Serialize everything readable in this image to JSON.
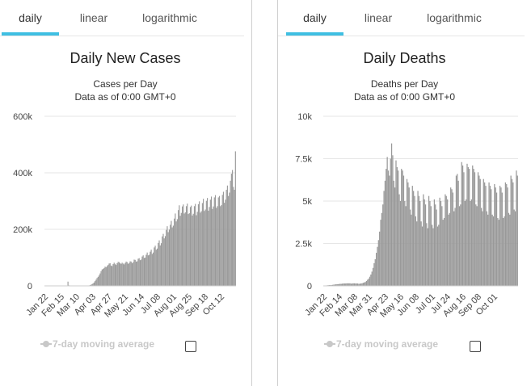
{
  "left_panel": {
    "tabs": [
      {
        "label": "daily",
        "active": true
      },
      {
        "label": "linear",
        "active": false
      },
      {
        "label": "logarithmic",
        "active": false
      }
    ],
    "title": "Daily New Cases",
    "subtitle": "Cases per Day",
    "data_note": "Data as of 0:00 GMT+0",
    "legend_label": "7-day moving average"
  },
  "right_panel": {
    "tabs": [
      {
        "label": "daily",
        "active": true
      },
      {
        "label": "linear",
        "active": false
      },
      {
        "label": "logarithmic",
        "active": false
      }
    ],
    "title": "Daily Deaths",
    "subtitle": "Deaths per Day",
    "data_note": "Data as of 0:00 GMT+0",
    "legend_label": "7-day moving average"
  },
  "colors": {
    "bar": "#999999",
    "grid": "#e6e6e6",
    "tab_underline": "#3fbfe2",
    "legend_disabled": "#c8c8c8"
  },
  "chart_data": [
    {
      "type": "bar",
      "title": "Daily New Cases",
      "subtitle": "Cases per Day",
      "ylim": [
        0,
        600000
      ],
      "yticks": [
        0,
        200000,
        400000,
        600000
      ],
      "ytick_labels": [
        "0",
        "200k",
        "400k",
        "600k"
      ],
      "x_range": [
        "Jan 22",
        "Oct 21"
      ],
      "xtick_labels": [
        "Jan 22",
        "Feb 15",
        "Mar 10",
        "Apr 03",
        "Apr 27",
        "May 21",
        "Jun 14",
        "Jul 08",
        "Aug 01",
        "Aug 25",
        "Sep 18",
        "Oct 12"
      ],
      "grid": true,
      "series": [
        {
          "values": [
            0,
            0,
            0,
            0,
            0,
            0,
            0,
            0,
            0,
            0,
            0,
            0,
            0,
            0,
            0,
            0,
            0,
            0,
            0,
            0,
            0,
            0,
            0,
            15000,
            2000,
            500,
            0,
            0,
            0,
            0,
            0,
            0,
            0,
            0,
            0,
            0,
            0,
            0,
            0,
            0,
            0,
            0,
            500,
            1000,
            1500,
            2500,
            4000,
            6000,
            9000,
            12000,
            17000,
            22000,
            28000,
            32000,
            37000,
            44000,
            52000,
            58000,
            60000,
            63000,
            68000,
            66000,
            70000,
            74000,
            79000,
            80000,
            72000,
            70000,
            77000,
            82000,
            78000,
            74000,
            80000,
            85000,
            84000,
            80000,
            78000,
            82000,
            79000,
            76000,
            81000,
            86000,
            84000,
            78000,
            81000,
            87000,
            86000,
            80000,
            84000,
            93000,
            92000,
            86000,
            87000,
            96000,
            98000,
            91000,
            93000,
            104000,
            108000,
            99000,
            100000,
            110000,
            118000,
            108000,
            110000,
            121000,
            128000,
            113000,
            118000,
            136000,
            142000,
            128000,
            132000,
            152000,
            161000,
            143000,
            151000,
            175000,
            184000,
            168000,
            176000,
            198000,
            211000,
            190000,
            199000,
            216000,
            230000,
            207000,
            213000,
            238000,
            256000,
            228000,
            236000,
            268000,
            285000,
            248000,
            258000,
            281000,
            288000,
            256000,
            260000,
            282000,
            291000,
            254000,
            257000,
            279000,
            284000,
            249000,
            255000,
            282000,
            290000,
            250000,
            262000,
            289000,
            299000,
            259000,
            264000,
            293000,
            308000,
            265000,
            270000,
            301000,
            311000,
            266000,
            279000,
            305000,
            316000,
            272000,
            281000,
            313000,
            321000,
            276000,
            282000,
            313000,
            318000,
            282000,
            286000,
            322000,
            333000,
            294000,
            305000,
            340000,
            355000,
            318000,
            330000,
            372000,
            397000,
            410000,
            350000,
            340000,
            476000
          ]
        }
      ]
    },
    {
      "type": "bar",
      "title": "Daily Deaths",
      "subtitle": "Deaths per Day",
      "ylim": [
        0,
        10000
      ],
      "yticks": [
        0,
        2500,
        5000,
        7500,
        10000
      ],
      "ytick_labels": [
        "0",
        "2.5k",
        "5k",
        "7.5k",
        "10k"
      ],
      "x_range": [
        "Jan 22",
        "Oct 20"
      ],
      "xtick_labels": [
        "Jan 22",
        "Feb 14",
        "Mar 08",
        "Mar 31",
        "Apr 23",
        "May 16",
        "Jun 08",
        "Jul 01",
        "Jul 24",
        "Aug 16",
        "Sep 08",
        "Oct 01"
      ],
      "grid": true,
      "series": [
        {
          "values": [
            20,
            20,
            25,
            30,
            40,
            45,
            45,
            50,
            60,
            70,
            80,
            90,
            100,
            100,
            110,
            120,
            120,
            130,
            140,
            140,
            140,
            150,
            150,
            150,
            150,
            130,
            140,
            150,
            150,
            140,
            140,
            140,
            120,
            130,
            140,
            150,
            180,
            200,
            230,
            290,
            360,
            430,
            540,
            670,
            840,
            1060,
            1340,
            1570,
            1950,
            2300,
            2700,
            3200,
            3900,
            4300,
            4800,
            5600,
            6200,
            6900,
            7600,
            6800,
            6500,
            7500,
            8400,
            7700,
            6200,
            5800,
            7400,
            7000,
            6800,
            5400,
            5000,
            6900,
            6800,
            6500,
            5000,
            4700,
            6300,
            6100,
            5800,
            4500,
            4200,
            5900,
            5600,
            5300,
            4100,
            3800,
            5600,
            5300,
            5000,
            3800,
            3500,
            5400,
            5100,
            4800,
            3700,
            3400,
            5300,
            5000,
            4700,
            3600,
            3400,
            5100,
            4800,
            4500,
            3500,
            3600,
            5200,
            5000,
            4700,
            3900,
            4000,
            5400,
            5300,
            5100,
            4200,
            4300,
            5800,
            5700,
            5500,
            4400,
            4600,
            6500,
            6600,
            6200,
            4700,
            4800,
            7300,
            7100,
            6700,
            5000,
            5100,
            7200,
            7000,
            6900,
            5000,
            5100,
            7100,
            6900,
            6700,
            4800,
            4700,
            6700,
            6500,
            6300,
            4600,
            4400,
            6300,
            6100,
            5900,
            4400,
            4200,
            6100,
            5900,
            5700,
            4200,
            4100,
            6000,
            5800,
            5500,
            4000,
            3900,
            5900,
            5800,
            5500,
            4000,
            4100,
            6100,
            6000,
            5800,
            4300,
            4200,
            6500,
            6300,
            6100,
            4500,
            4400,
            6800,
            6500
          ]
        }
      ]
    }
  ]
}
